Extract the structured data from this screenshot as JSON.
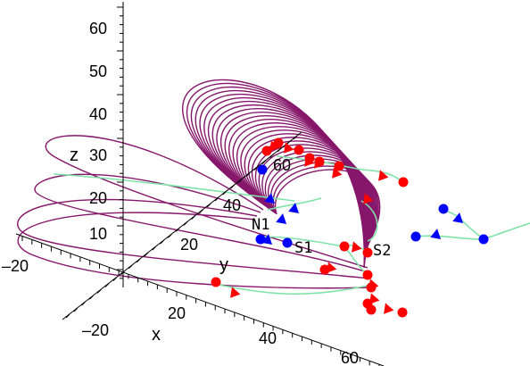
{
  "chart_data": {
    "type": "scatter",
    "projection": "3d",
    "title": "",
    "axes": {
      "x": {
        "label": "x",
        "ticks": [
          "–20",
          "20",
          "40",
          "60"
        ]
      },
      "y": {
        "label": "y",
        "ticks": [
          "–20",
          "20",
          "40",
          "60"
        ]
      },
      "z": {
        "label": "z",
        "ticks": [
          "10",
          "20",
          "30",
          "40",
          "50",
          "60"
        ]
      }
    },
    "annotations": [
      "N1",
      "S1",
      "S2"
    ],
    "series": [
      {
        "color": "#86176b",
        "style": "field-line loops",
        "count": 26
      },
      {
        "color": "#7fe3a8",
        "style": "trajectory lines"
      },
      {
        "color": "#ff0000",
        "style": "markers (circles and triangles)"
      },
      {
        "color": "#0000ff",
        "style": "markers (circles and triangles)"
      }
    ]
  }
}
